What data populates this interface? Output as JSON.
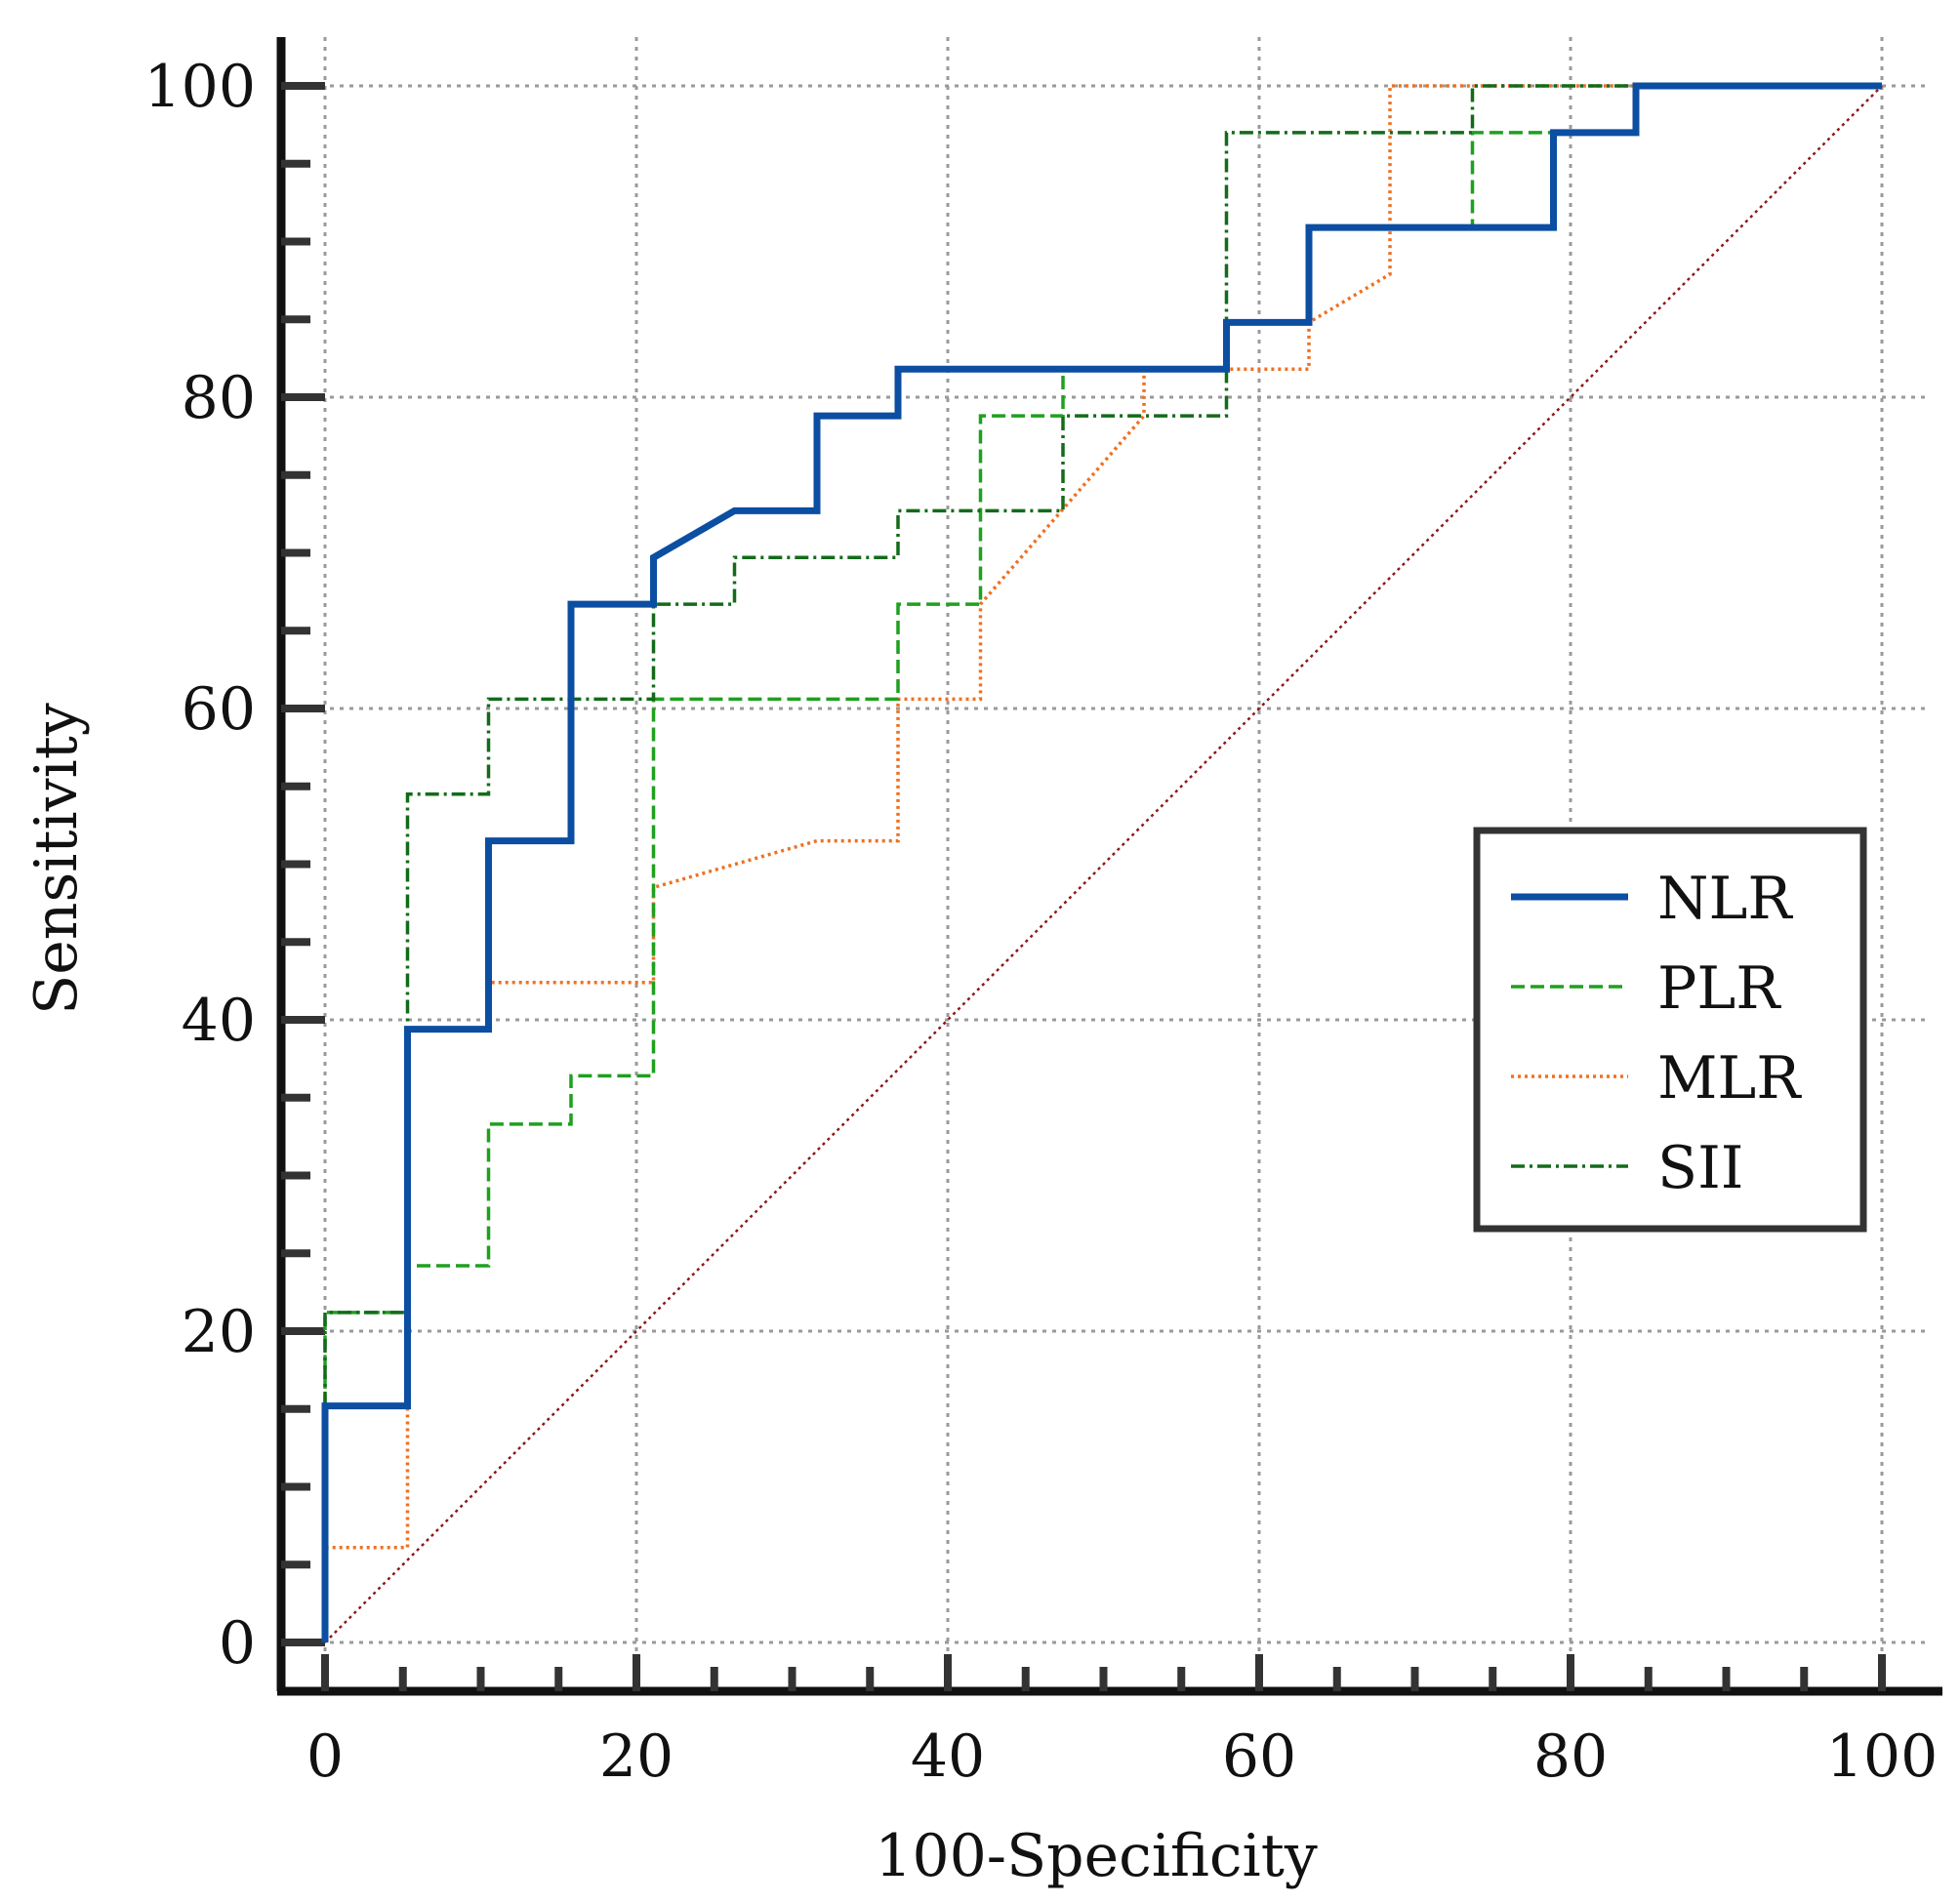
{
  "chart_data": {
    "type": "line",
    "subtype": "roc",
    "title": "",
    "xlabel": "100-Specificity",
    "ylabel": "Sensitivity",
    "xlim": [
      0,
      100
    ],
    "ylim": [
      0,
      100
    ],
    "xticks": [
      "0",
      "20",
      "40",
      "60",
      "80",
      "100"
    ],
    "yticks": [
      "0",
      "20",
      "40",
      "60",
      "80",
      "100"
    ],
    "grid": true,
    "legend_position": "right",
    "series": [
      {
        "name": "NLR",
        "color": "#0b4ea2",
        "style": "solid",
        "x": [
          0,
          0,
          5.3,
          5.3,
          10.5,
          10.5,
          15.8,
          15.8,
          21.1,
          21.1,
          26.3,
          31.6,
          31.6,
          36.8,
          36.8,
          57.9,
          57.9,
          63.2,
          63.2,
          78.9,
          78.9,
          84.2,
          84.2,
          100
        ],
        "y": [
          0,
          15.2,
          15.2,
          39.4,
          39.4,
          51.5,
          51.5,
          66.7,
          66.7,
          69.7,
          72.7,
          72.7,
          78.8,
          78.8,
          81.8,
          81.8,
          84.8,
          84.8,
          90.9,
          90.9,
          97.0,
          97.0,
          100,
          100
        ]
      },
      {
        "name": "PLR",
        "color": "#1fa01f",
        "style": "dashed",
        "x": [
          0,
          0,
          5.3,
          5.3,
          10.5,
          10.5,
          15.8,
          15.8,
          21.1,
          21.1,
          36.8,
          36.8,
          42.1,
          42.1,
          47.4,
          47.4,
          57.9,
          57.9,
          63.2,
          63.2,
          73.7,
          73.7,
          78.9,
          78.9,
          84.2,
          84.2,
          100
        ],
        "y": [
          0,
          21.2,
          21.2,
          24.2,
          24.2,
          33.3,
          33.3,
          36.4,
          36.4,
          60.6,
          60.6,
          66.7,
          66.7,
          78.8,
          78.8,
          81.8,
          81.8,
          84.8,
          84.8,
          90.9,
          90.9,
          97.0,
          97.0,
          97.0,
          97.0,
          100,
          100
        ]
      },
      {
        "name": "MLR",
        "color": "#f07020",
        "style": "dotted",
        "x": [
          0,
          0,
          5.3,
          5.3,
          10.5,
          10.5,
          21.1,
          21.1,
          31.6,
          36.8,
          36.8,
          42.1,
          42.1,
          52.6,
          52.6,
          63.2,
          63.2,
          68.4,
          68.4,
          100
        ],
        "y": [
          0,
          6.1,
          6.1,
          39.4,
          39.4,
          42.4,
          42.4,
          48.5,
          51.5,
          51.5,
          60.6,
          60.6,
          66.7,
          78.8,
          81.8,
          81.8,
          84.8,
          87.9,
          100,
          100
        ]
      },
      {
        "name": "SII",
        "color": "#136b1a",
        "style": "dashdot",
        "x": [
          0,
          0,
          5.3,
          5.3,
          10.5,
          10.5,
          21.1,
          21.1,
          26.3,
          26.3,
          36.8,
          36.8,
          47.4,
          47.4,
          57.9,
          57.9,
          73.7,
          73.7,
          100
        ],
        "y": [
          0,
          21.2,
          21.2,
          54.5,
          54.5,
          60.6,
          60.6,
          66.7,
          66.7,
          69.7,
          69.7,
          72.7,
          72.7,
          78.8,
          78.8,
          97.0,
          97.0,
          100,
          100
        ]
      },
      {
        "name": "Reference",
        "color": "#8b1a1a",
        "style": "dotted",
        "x": [
          0,
          100
        ],
        "y": [
          0,
          100
        ],
        "in_legend": false
      }
    ]
  }
}
